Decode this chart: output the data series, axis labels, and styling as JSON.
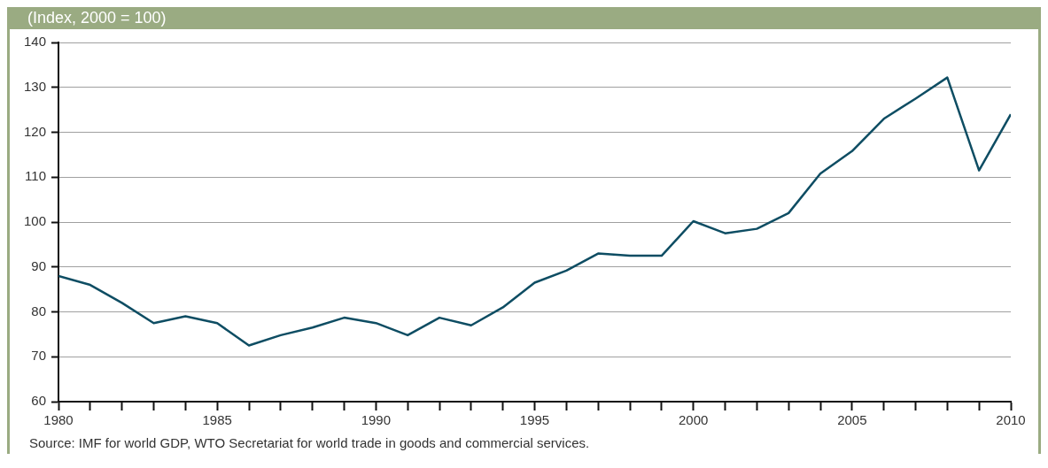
{
  "chart_data": {
    "type": "line",
    "subtitle": "(Index, 2000 = 100)",
    "x": [
      1980,
      1981,
      1982,
      1983,
      1984,
      1985,
      1986,
      1987,
      1988,
      1989,
      1990,
      1991,
      1992,
      1993,
      1994,
      1995,
      1996,
      1997,
      1998,
      1999,
      2000,
      2001,
      2002,
      2003,
      2004,
      2005,
      2006,
      2007,
      2008,
      2009,
      2010
    ],
    "series": [
      {
        "color": "#0e4d63",
        "values": [
          88,
          86,
          82,
          77.5,
          79,
          77.5,
          72.5,
          74.8,
          76.5,
          78.7,
          77.5,
          74.8,
          78.7,
          77,
          81,
          86.5,
          89.2,
          93,
          92.5,
          92.5,
          100.2,
          97.5,
          98.5,
          102,
          110.8,
          115.8,
          123,
          127.5,
          132.2,
          111.5,
          124
        ]
      }
    ],
    "xlim": [
      1980,
      2010
    ],
    "xticks": [
      1980,
      {
        "value": 1981,
        "label": null
      },
      {
        "value": 1982,
        "label": null
      },
      {
        "value": 1983,
        "label": null
      },
      {
        "value": 1984,
        "label": null
      },
      1985,
      {
        "value": 1986,
        "label": null
      },
      {
        "value": 1987,
        "label": null
      },
      {
        "value": 1988,
        "label": null
      },
      {
        "value": 1989,
        "label": null
      },
      1990,
      {
        "value": 1991,
        "label": null
      },
      {
        "value": 1992,
        "label": null
      },
      {
        "value": 1993,
        "label": null
      },
      {
        "value": 1994,
        "label": null
      },
      1995,
      {
        "value": 1996,
        "label": null
      },
      {
        "value": 1997,
        "label": null
      },
      {
        "value": 1998,
        "label": null
      },
      {
        "value": 1999,
        "label": null
      },
      2000,
      {
        "value": 2001,
        "label": null
      },
      {
        "value": 2002,
        "label": null
      },
      {
        "value": 2003,
        "label": null
      },
      {
        "value": 2004,
        "label": null
      },
      2005,
      {
        "value": 2006,
        "label": null
      },
      {
        "value": 2007,
        "label": null
      },
      {
        "value": 2008,
        "label": null
      },
      {
        "value": 2009,
        "label": null
      },
      2010
    ],
    "ylim": [
      60,
      140
    ],
    "yticks": [
      60,
      70,
      80,
      90,
      100,
      110,
      120,
      130,
      140
    ],
    "grid": "y",
    "legend": false,
    "marker": "none",
    "line_style": "solid",
    "annotations": [
      "Source: IMF for world GDP, WTO Secretariat for world trade in goods and commercial services."
    ]
  }
}
